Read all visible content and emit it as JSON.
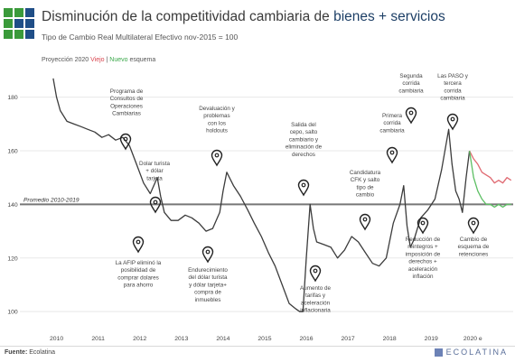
{
  "header": {
    "title_prefix": "Disminución de la competitividad cambiaria de ",
    "title_highlight": "bienes + servicios",
    "subtitle": "Tipo de Cambio Real Multilateral Efectivo nov-2015 = 100"
  },
  "legend": {
    "prefix": "Proyección 2020 ",
    "old_label": "Viejo",
    "separator": " | ",
    "new_label": "Nuevo",
    "suffix": " esquema"
  },
  "footer": {
    "source_label": "Fuente:",
    "source_value": " Ecolatina",
    "brand": "ECOLATINA"
  },
  "colors": {
    "line": "#3c3c3c",
    "projection_old": "#e06a72",
    "projection_new": "#5cbf63",
    "average_line": "#777777",
    "grid": "#e8e8e8",
    "title_highlight": "#1d3f66",
    "logo_green": "#3a9a3a",
    "logo_blue": "#1f4e87"
  },
  "chart_data": {
    "type": "line",
    "title": "Disminución de la competitividad cambiaria de bienes + servicios",
    "subtitle": "Tipo de Cambio Real Multilateral Efectivo nov-2015 = 100",
    "xlabel": "",
    "ylabel": "",
    "ylim": [
      95,
      190
    ],
    "yticks": [
      100,
      120,
      140,
      160,
      180
    ],
    "x_tick_labels": [
      "2010",
      "2011",
      "2012",
      "2013",
      "2014",
      "2015",
      "2016",
      "2017",
      "2018",
      "2019",
      "2020 e"
    ],
    "grid": "horizontal",
    "reference_line": {
      "label": "Promedio 2010-2019",
      "value": 140
    },
    "series": [
      {
        "name": "",
        "x": [
          2010.0,
          2010.08,
          2010.17,
          2010.33,
          2010.5,
          2010.67,
          2010.83,
          2011.0,
          2011.17,
          2011.33,
          2011.5,
          2011.67,
          2011.83,
          2012.0,
          2012.17,
          2012.33,
          2012.5,
          2012.58,
          2012.67,
          2012.83,
          2013.0,
          2013.17,
          2013.33,
          2013.5,
          2013.67,
          2013.83,
          2014.0,
          2014.08,
          2014.17,
          2014.33,
          2014.5,
          2014.67,
          2014.83,
          2015.0,
          2015.17,
          2015.33,
          2015.5,
          2015.67,
          2015.83,
          2015.92,
          2016.0,
          2016.08,
          2016.17,
          2016.25,
          2016.33,
          2016.5,
          2016.67,
          2016.83,
          2017.0,
          2017.17,
          2017.33,
          2017.5,
          2017.67,
          2017.83,
          2018.0,
          2018.17,
          2018.33,
          2018.42,
          2018.5,
          2018.58,
          2018.67,
          2018.75,
          2018.83,
          2019.0,
          2019.17,
          2019.33,
          2019.5,
          2019.58,
          2019.67,
          2019.75,
          2019.83,
          2019.92,
          2020.0
        ],
        "values": [
          187,
          180,
          175,
          171,
          170,
          169,
          168,
          167,
          165,
          166,
          164,
          165,
          162,
          155,
          148,
          144,
          150,
          143,
          137,
          134,
          134,
          136,
          135,
          133,
          130,
          131,
          137,
          145,
          152,
          147,
          143,
          138,
          133,
          128,
          122,
          117,
          110,
          103,
          101,
          100,
          100,
          120,
          140,
          131,
          126,
          125,
          124,
          120,
          123,
          128,
          126,
          122,
          118,
          117,
          120,
          133,
          140,
          147,
          132,
          124,
          127,
          131,
          135,
          138,
          142,
          153,
          168,
          155,
          145,
          142,
          137,
          150,
          160
        ]
      },
      {
        "name": "Viejo",
        "x": [
          2020.0,
          2020.1,
          2020.2,
          2020.3,
          2020.4,
          2020.5,
          2020.6,
          2020.7,
          2020.8,
          2020.9,
          2021.0
        ],
        "values": [
          160,
          157,
          155,
          152,
          151,
          150,
          148,
          149,
          148,
          150,
          149
        ]
      },
      {
        "name": "Nuevo",
        "x": [
          2020.0,
          2020.1,
          2020.2,
          2020.3,
          2020.4,
          2020.5,
          2020.6,
          2020.7,
          2020.8,
          2020.9,
          2021.0
        ],
        "values": [
          160,
          150,
          145,
          142,
          140,
          140,
          139,
          140,
          139,
          140,
          140
        ]
      }
    ],
    "annotations": [
      {
        "text": [
          "Programa de",
          "Consultos de",
          "Operaciones",
          "Cambiarias"
        ],
        "x": 2012.0,
        "side": "above"
      },
      {
        "text": [
          "Dolar turista",
          "+ dólar",
          "tarjeta"
        ],
        "x": 2012.6,
        "side": "above"
      },
      {
        "text": [
          "Devaluación y",
          "problemas",
          "con los",
          "holdouts"
        ],
        "x": 2014.0,
        "side": "above"
      },
      {
        "text": [
          "Salida del",
          "cepo, salto",
          "cambiario y",
          "eliminación de",
          "derechos"
        ],
        "x": 2016.1,
        "side": "above"
      },
      {
        "text": [
          "Candidatura",
          "CFK y salto",
          "tipo de",
          "cambio"
        ],
        "x": 2018.1,
        "side": "above"
      },
      {
        "text": [
          "Primera",
          "corrida",
          "cambiaria"
        ],
        "x": 2018.6,
        "side": "above"
      },
      {
        "text": [
          "Segunda",
          "corrida",
          "cambiaria"
        ],
        "x": 2019.2,
        "side": "above"
      },
      {
        "text": [
          "Las PASO y",
          "tercera",
          "corrida",
          "cambiaria"
        ],
        "x": 2019.8,
        "side": "above"
      },
      {
        "text": [
          "La AFIP eliminó la",
          "posibilidad de",
          "comprar dolares",
          "para ahorro"
        ],
        "x": 2012.2,
        "side": "below"
      },
      {
        "text": [
          "Endurecimiento",
          "del dólar turista",
          "y dólar tarjeta+",
          "compra de",
          "inmuebles"
        ],
        "x": 2013.8,
        "side": "below"
      },
      {
        "text": [
          "Aumento de",
          "tarifas y",
          "aceleración",
          "inflacionaria"
        ],
        "x": 2016.6,
        "side": "below"
      },
      {
        "text": [
          "Reducción de",
          "reintegros +",
          "imposición de",
          "derechos +",
          "aceleración",
          "inflación"
        ],
        "x": 2019.0,
        "side": "below"
      },
      {
        "text": [
          "Cambio de",
          "esquema de",
          "retenciones"
        ],
        "x": 2020.0,
        "side": "below"
      }
    ]
  }
}
